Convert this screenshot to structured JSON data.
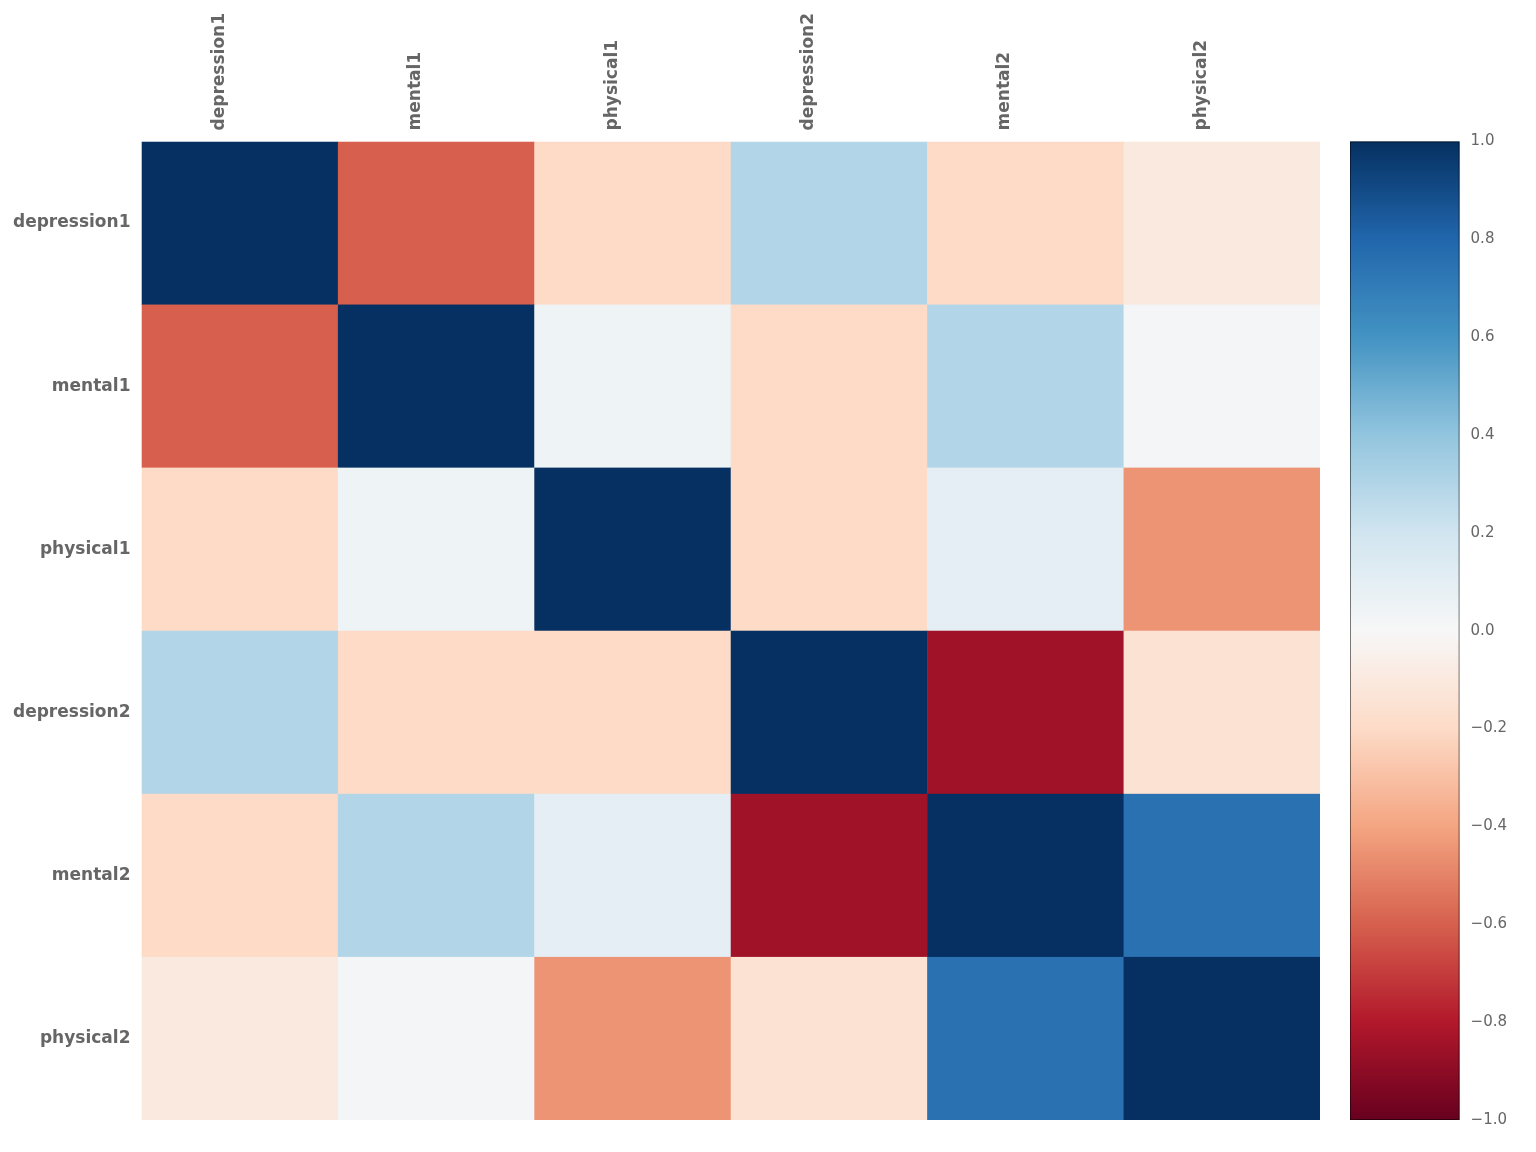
{
  "chart_data": {
    "type": "heatmap",
    "categories": [
      "depression1",
      "mental1",
      "physical1",
      "depression2",
      "mental2",
      "physical2"
    ],
    "values": [
      [
        1.0,
        -0.6,
        -0.2,
        0.3,
        -0.2,
        -0.1
      ],
      [
        -0.6,
        1.0,
        0.05,
        -0.2,
        0.3,
        0.02
      ],
      [
        -0.2,
        0.05,
        1.0,
        -0.2,
        0.1,
        -0.45
      ],
      [
        0.3,
        -0.2,
        -0.2,
        1.0,
        -0.85,
        -0.15
      ],
      [
        -0.2,
        0.3,
        0.1,
        -0.85,
        1.0,
        0.75
      ],
      [
        -0.1,
        0.02,
        -0.45,
        -0.15,
        0.75,
        1.0
      ]
    ],
    "color_range": [
      -1,
      1
    ],
    "color_ticks": [
      {
        "value": 1,
        "label": "1.0"
      },
      {
        "value": 0.8,
        "label": "0.8"
      },
      {
        "value": 0.6,
        "label": "0.6"
      },
      {
        "value": 0.4,
        "label": "0.4"
      },
      {
        "value": 0.2,
        "label": "0.2"
      },
      {
        "value": 0,
        "label": "0.0"
      },
      {
        "value": -0.2,
        "label": "−0.2"
      },
      {
        "value": -0.4,
        "label": "−0.4"
      },
      {
        "value": -0.6,
        "label": "−0.6"
      },
      {
        "value": -0.8,
        "label": "−0.8"
      },
      {
        "value": -1,
        "label": "−1.0"
      }
    ],
    "grid": false
  }
}
